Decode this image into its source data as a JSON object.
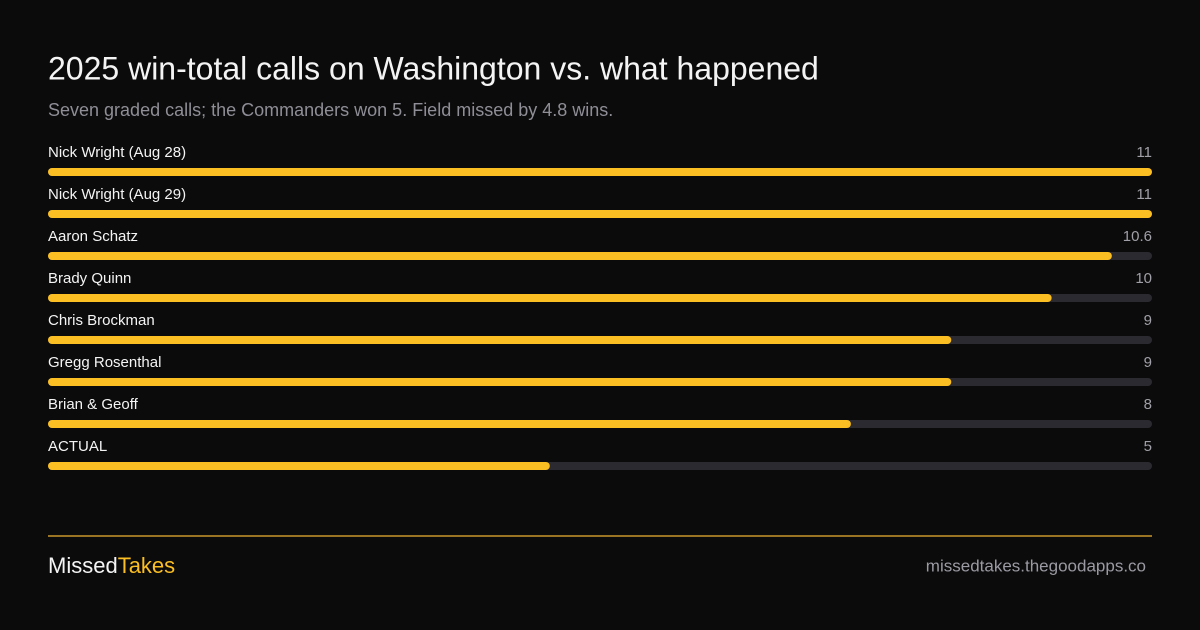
{
  "chart_data": {
    "type": "bar",
    "orientation": "horizontal",
    "title": "2025 win-total calls on Washington vs. what happened",
    "subtitle": "Seven graded calls; the Commanders won 5. Field missed by 4.8 wins.",
    "categories": [
      "Nick Wright (Aug 28)",
      "Nick Wright (Aug 29)",
      "Aaron Schatz",
      "Brady Quinn",
      "Chris Brockman",
      "Gregg Rosenthal",
      "Brian & Geoff",
      "ACTUAL"
    ],
    "values": [
      11,
      11,
      10.6,
      10,
      9,
      9,
      8,
      5
    ],
    "xlim": [
      0,
      11
    ],
    "color": "#fbbf24",
    "track_color": "#2c2a31"
  },
  "footer": {
    "brand": [
      "Missed",
      "Takes"
    ],
    "url": "missedtakes.thegoodapps.co"
  }
}
